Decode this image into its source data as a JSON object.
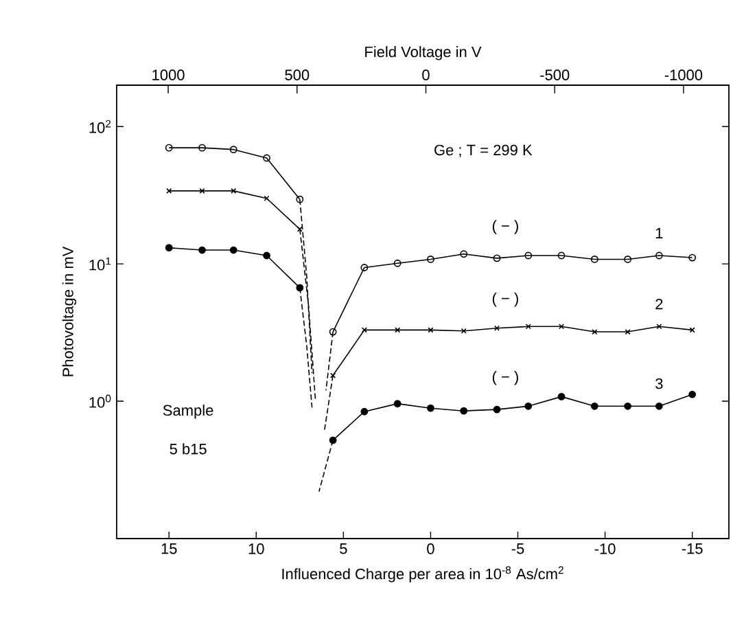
{
  "chart_data": {
    "type": "line",
    "xlabel": "Influenced Charge per area in 10$^{-8}$ As/cm$^{2}$",
    "x2label": "Field Voltage in V",
    "ylabel": "Photovoltage in mV",
    "x": [
      15,
      13.1,
      11.3,
      9.4,
      7.5,
      6.6,
      5.6,
      3.8,
      1.9,
      0,
      -1.9,
      -3.8,
      -5.6,
      -7.5,
      -9.4,
      -11.3,
      -13.1,
      -15
    ],
    "series": [
      {
        "name": "1",
        "color": "#000000",
        "marker": "circle",
        "values": [
          70,
          70,
          68,
          59,
          29.5,
          null,
          3.2,
          9.4,
          10.1,
          10.8,
          11.8,
          11.0,
          11.5,
          11.5,
          10.8,
          10.8,
          11.5,
          11.1
        ]
      },
      {
        "name": "2",
        "color": "#000000",
        "marker": "cross",
        "values": [
          34,
          34,
          34,
          30,
          17.9,
          null,
          1.54,
          3.3,
          3.3,
          3.3,
          3.25,
          3.4,
          3.5,
          3.5,
          3.2,
          3.2,
          3.5,
          3.3
        ]
      },
      {
        "name": "3",
        "color": "#000000",
        "marker": "circle",
        "colors": [
          "#000000",
          "#000000",
          "#000000",
          "#000000",
          "#000000",
          null,
          "#000000",
          "#000000",
          "#000000",
          "#000000",
          "#000000",
          "#000000",
          "#000000",
          "#000000",
          "#000000",
          "#000000",
          "#000000",
          "#000000"
        ],
        "values": [
          13.1,
          12.6,
          12.6,
          11.5,
          6.7,
          null,
          0.52,
          0.84,
          0.96,
          0.89,
          0.85,
          0.87,
          0.92,
          1.08,
          0.92,
          0.92,
          0.92,
          1.12
        ]
      },
      {
        "color": "#000000",
        "marker": "none",
        "line_style": "dashed",
        "x": [
          7.5,
          7.1,
          6.8
        ],
        "values": [
          29.5,
          8,
          1.6
        ]
      },
      {
        "color": "#000000",
        "marker": "none",
        "line_style": "dashed",
        "x": [
          7.5,
          7.0,
          6.6
        ],
        "values": [
          17.9,
          5,
          1.0
        ]
      },
      {
        "color": "#000000",
        "marker": "none",
        "line_style": "dashed",
        "x": [
          7.5,
          7.1,
          6.8
        ],
        "values": [
          6.7,
          2.5,
          0.9
        ]
      },
      {
        "color": "#000000",
        "marker": "none",
        "line_style": "dashed",
        "x": [
          5.6,
          6.0
        ],
        "values": [
          3.2,
          1.2
        ]
      },
      {
        "color": "#000000",
        "marker": "none",
        "line_style": "dashed",
        "x": [
          5.6,
          6.1
        ],
        "values": [
          1.54,
          0.6
        ]
      },
      {
        "color": "#000000",
        "marker": "none",
        "line_style": "dashed",
        "x": [
          5.6,
          6.4
        ],
        "values": [
          0.52,
          0.22
        ]
      }
    ],
    "xlim": [
      18,
      -17.1
    ],
    "xticks": [
      15,
      10,
      5,
      0,
      -5,
      -10,
      -15
    ],
    "x2lim": [
      1200,
      -1176
    ],
    "x2ticks": [
      1000,
      500,
      0,
      -500,
      -1000
    ],
    "ylim": [
      0.1,
      200
    ],
    "yticks": [
      {
        "value": 1,
        "label": "10$^{0}$"
      },
      {
        "value": 10,
        "label": "10$^{1}$"
      },
      {
        "value": 100,
        "label": "10$^{2}$"
      }
    ],
    "log": true,
    "line_style": "solid",
    "annotations": [
      "Ge ;   T = 299 K",
      "( − )",
      "( − )",
      "( − )",
      "Sample",
      "5 b15"
    ]
  }
}
